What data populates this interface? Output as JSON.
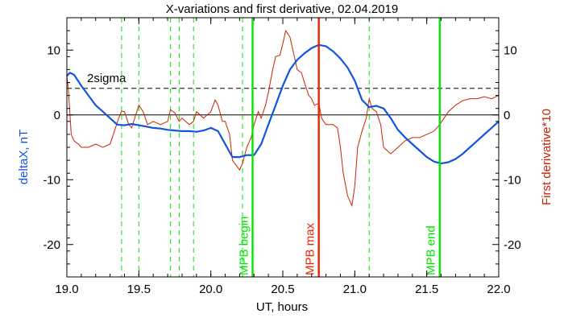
{
  "chart_data": {
    "type": "line",
    "title": "X-variations and first derivative, 02.04.2019",
    "xlabel": "UT, hours",
    "ylabel_left": "deltaX, nT",
    "ylabel_right": "First derivative*10",
    "xlim": [
      19.0,
      22.0
    ],
    "ylim": [
      -25,
      15
    ],
    "x_ticks": [
      19.0,
      19.5,
      20.0,
      20.5,
      21.0,
      21.5,
      22.0
    ],
    "x_tick_labels": [
      "19.0",
      "19.5",
      "20.0",
      "20.5",
      "21.0",
      "21.5",
      "22.0"
    ],
    "y_ticks": [
      10,
      0,
      -10,
      -20
    ],
    "y_tick_labels": [
      "10",
      "0",
      "-10",
      "-20"
    ],
    "grid": false,
    "colors": {
      "deltaX": "#1155dd",
      "derivative": "#cc2200",
      "green": "#00e600",
      "red": "#ee2200",
      "axes": "#000000"
    },
    "sigma_line": {
      "label": "2sigma",
      "y": 4.1
    },
    "zero_line": 0,
    "dashed_green_lines": [
      19.38,
      19.5,
      19.72,
      19.78,
      19.88,
      20.22,
      21.1
    ],
    "event_lines": [
      {
        "label": "MPB begin",
        "x": 20.29,
        "color": "#00e600"
      },
      {
        "label": "MPB max",
        "x": 20.75,
        "color": "#ee2200"
      },
      {
        "label": "MPB end",
        "x": 21.59,
        "color": "#00e600"
      }
    ],
    "series": [
      {
        "axis": "left",
        "x": [
          19.0,
          19.02,
          19.05,
          19.1,
          19.15,
          19.2,
          19.25,
          19.3,
          19.35,
          19.4,
          19.45,
          19.5,
          19.55,
          19.6,
          19.65,
          19.7,
          19.75,
          19.8,
          19.85,
          19.9,
          19.95,
          20.0,
          20.05,
          20.1,
          20.15,
          20.2,
          20.25,
          20.3,
          20.35,
          20.4,
          20.45,
          20.5,
          20.55,
          20.6,
          20.65,
          20.7,
          20.75,
          20.8,
          20.85,
          20.9,
          20.95,
          21.0,
          21.05,
          21.1,
          21.15,
          21.2,
          21.25,
          21.3,
          21.35,
          21.4,
          21.45,
          21.5,
          21.55,
          21.6,
          21.65,
          21.7,
          21.75,
          21.8,
          21.85,
          21.9,
          21.95,
          22.0
        ],
        "y": [
          6.0,
          6.5,
          6.2,
          4.5,
          3.0,
          1.5,
          0.5,
          -0.5,
          -1.5,
          -1.6,
          -1.4,
          -1.6,
          -1.8,
          -2.0,
          -2.1,
          -2.3,
          -2.4,
          -2.5,
          -2.5,
          -2.6,
          -2.4,
          -2.0,
          -2.5,
          -4.5,
          -6.5,
          -6.5,
          -6.2,
          -6.2,
          -4.5,
          -1.5,
          1.5,
          4.5,
          7.0,
          8.5,
          9.5,
          10.3,
          10.8,
          10.6,
          9.8,
          8.7,
          7.3,
          5.3,
          2.3,
          1.2,
          1.4,
          1.0,
          -0.5,
          -2.3,
          -3.5,
          -4.5,
          -5.5,
          -6.5,
          -7.2,
          -7.5,
          -7.3,
          -6.8,
          -6.0,
          -5.0,
          -4.0,
          -3.0,
          -2.0,
          -1.0
        ]
      },
      {
        "axis": "right",
        "x": [
          19.0,
          19.01,
          19.02,
          19.03,
          19.05,
          19.08,
          19.1,
          19.15,
          19.2,
          19.25,
          19.3,
          19.33,
          19.36,
          19.38,
          19.4,
          19.43,
          19.45,
          19.5,
          19.53,
          19.56,
          19.6,
          19.65,
          19.7,
          19.72,
          19.75,
          19.78,
          19.8,
          19.85,
          19.88,
          19.9,
          19.95,
          20.0,
          20.03,
          20.05,
          20.08,
          20.1,
          20.13,
          20.15,
          20.2,
          20.22,
          20.25,
          20.28,
          20.3,
          20.33,
          20.35,
          20.38,
          20.4,
          20.43,
          20.45,
          20.48,
          20.5,
          20.52,
          20.55,
          20.58,
          20.6,
          20.63,
          20.65,
          20.68,
          20.7,
          20.72,
          20.75,
          20.77,
          20.8,
          20.82,
          20.85,
          20.88,
          20.9,
          20.92,
          20.95,
          20.98,
          21.0,
          21.02,
          21.05,
          21.08,
          21.1,
          21.12,
          21.15,
          21.18,
          21.2,
          21.25,
          21.3,
          21.35,
          21.4,
          21.45,
          21.5,
          21.55,
          21.59,
          21.62,
          21.65,
          21.7,
          21.75,
          21.8,
          21.85,
          21.9,
          21.95,
          22.0
        ],
        "y": [
          6.0,
          4.0,
          0.5,
          -3.0,
          -4.0,
          -4.5,
          -5.0,
          -5.0,
          -4.5,
          -5.0,
          -4.5,
          -2.5,
          -0.5,
          0.6,
          0.5,
          -1.5,
          -2.0,
          1.5,
          0.5,
          -1.5,
          -1.0,
          -1.5,
          -1.0,
          0.8,
          0.3,
          -1.0,
          -0.5,
          -1.5,
          -1.0,
          0.5,
          -0.5,
          0.5,
          2.3,
          1.5,
          -1.0,
          -1.0,
          -3.0,
          -7.0,
          -8.5,
          -7.5,
          -5.0,
          -3.5,
          -1.5,
          0.5,
          -0.5,
          1.5,
          3.5,
          7.0,
          9.0,
          9.2,
          11.0,
          13.0,
          12.0,
          9.0,
          7.0,
          6.5,
          5.0,
          3.0,
          2.5,
          1.5,
          1.8,
          -0.5,
          -1.5,
          -1.5,
          -1.5,
          -2.0,
          -5.0,
          -9.0,
          -12.5,
          -14.0,
          -11.0,
          -5.0,
          -2.5,
          -0.5,
          2.5,
          1.0,
          0.5,
          -1.5,
          -5.0,
          -6.0,
          -5.0,
          -4.0,
          -3.5,
          -3.5,
          -3.0,
          -2.5,
          -1.5,
          -0.5,
          0.5,
          1.5,
          2.2,
          2.5,
          2.5,
          2.8,
          2.5,
          3.0
        ]
      }
    ]
  }
}
